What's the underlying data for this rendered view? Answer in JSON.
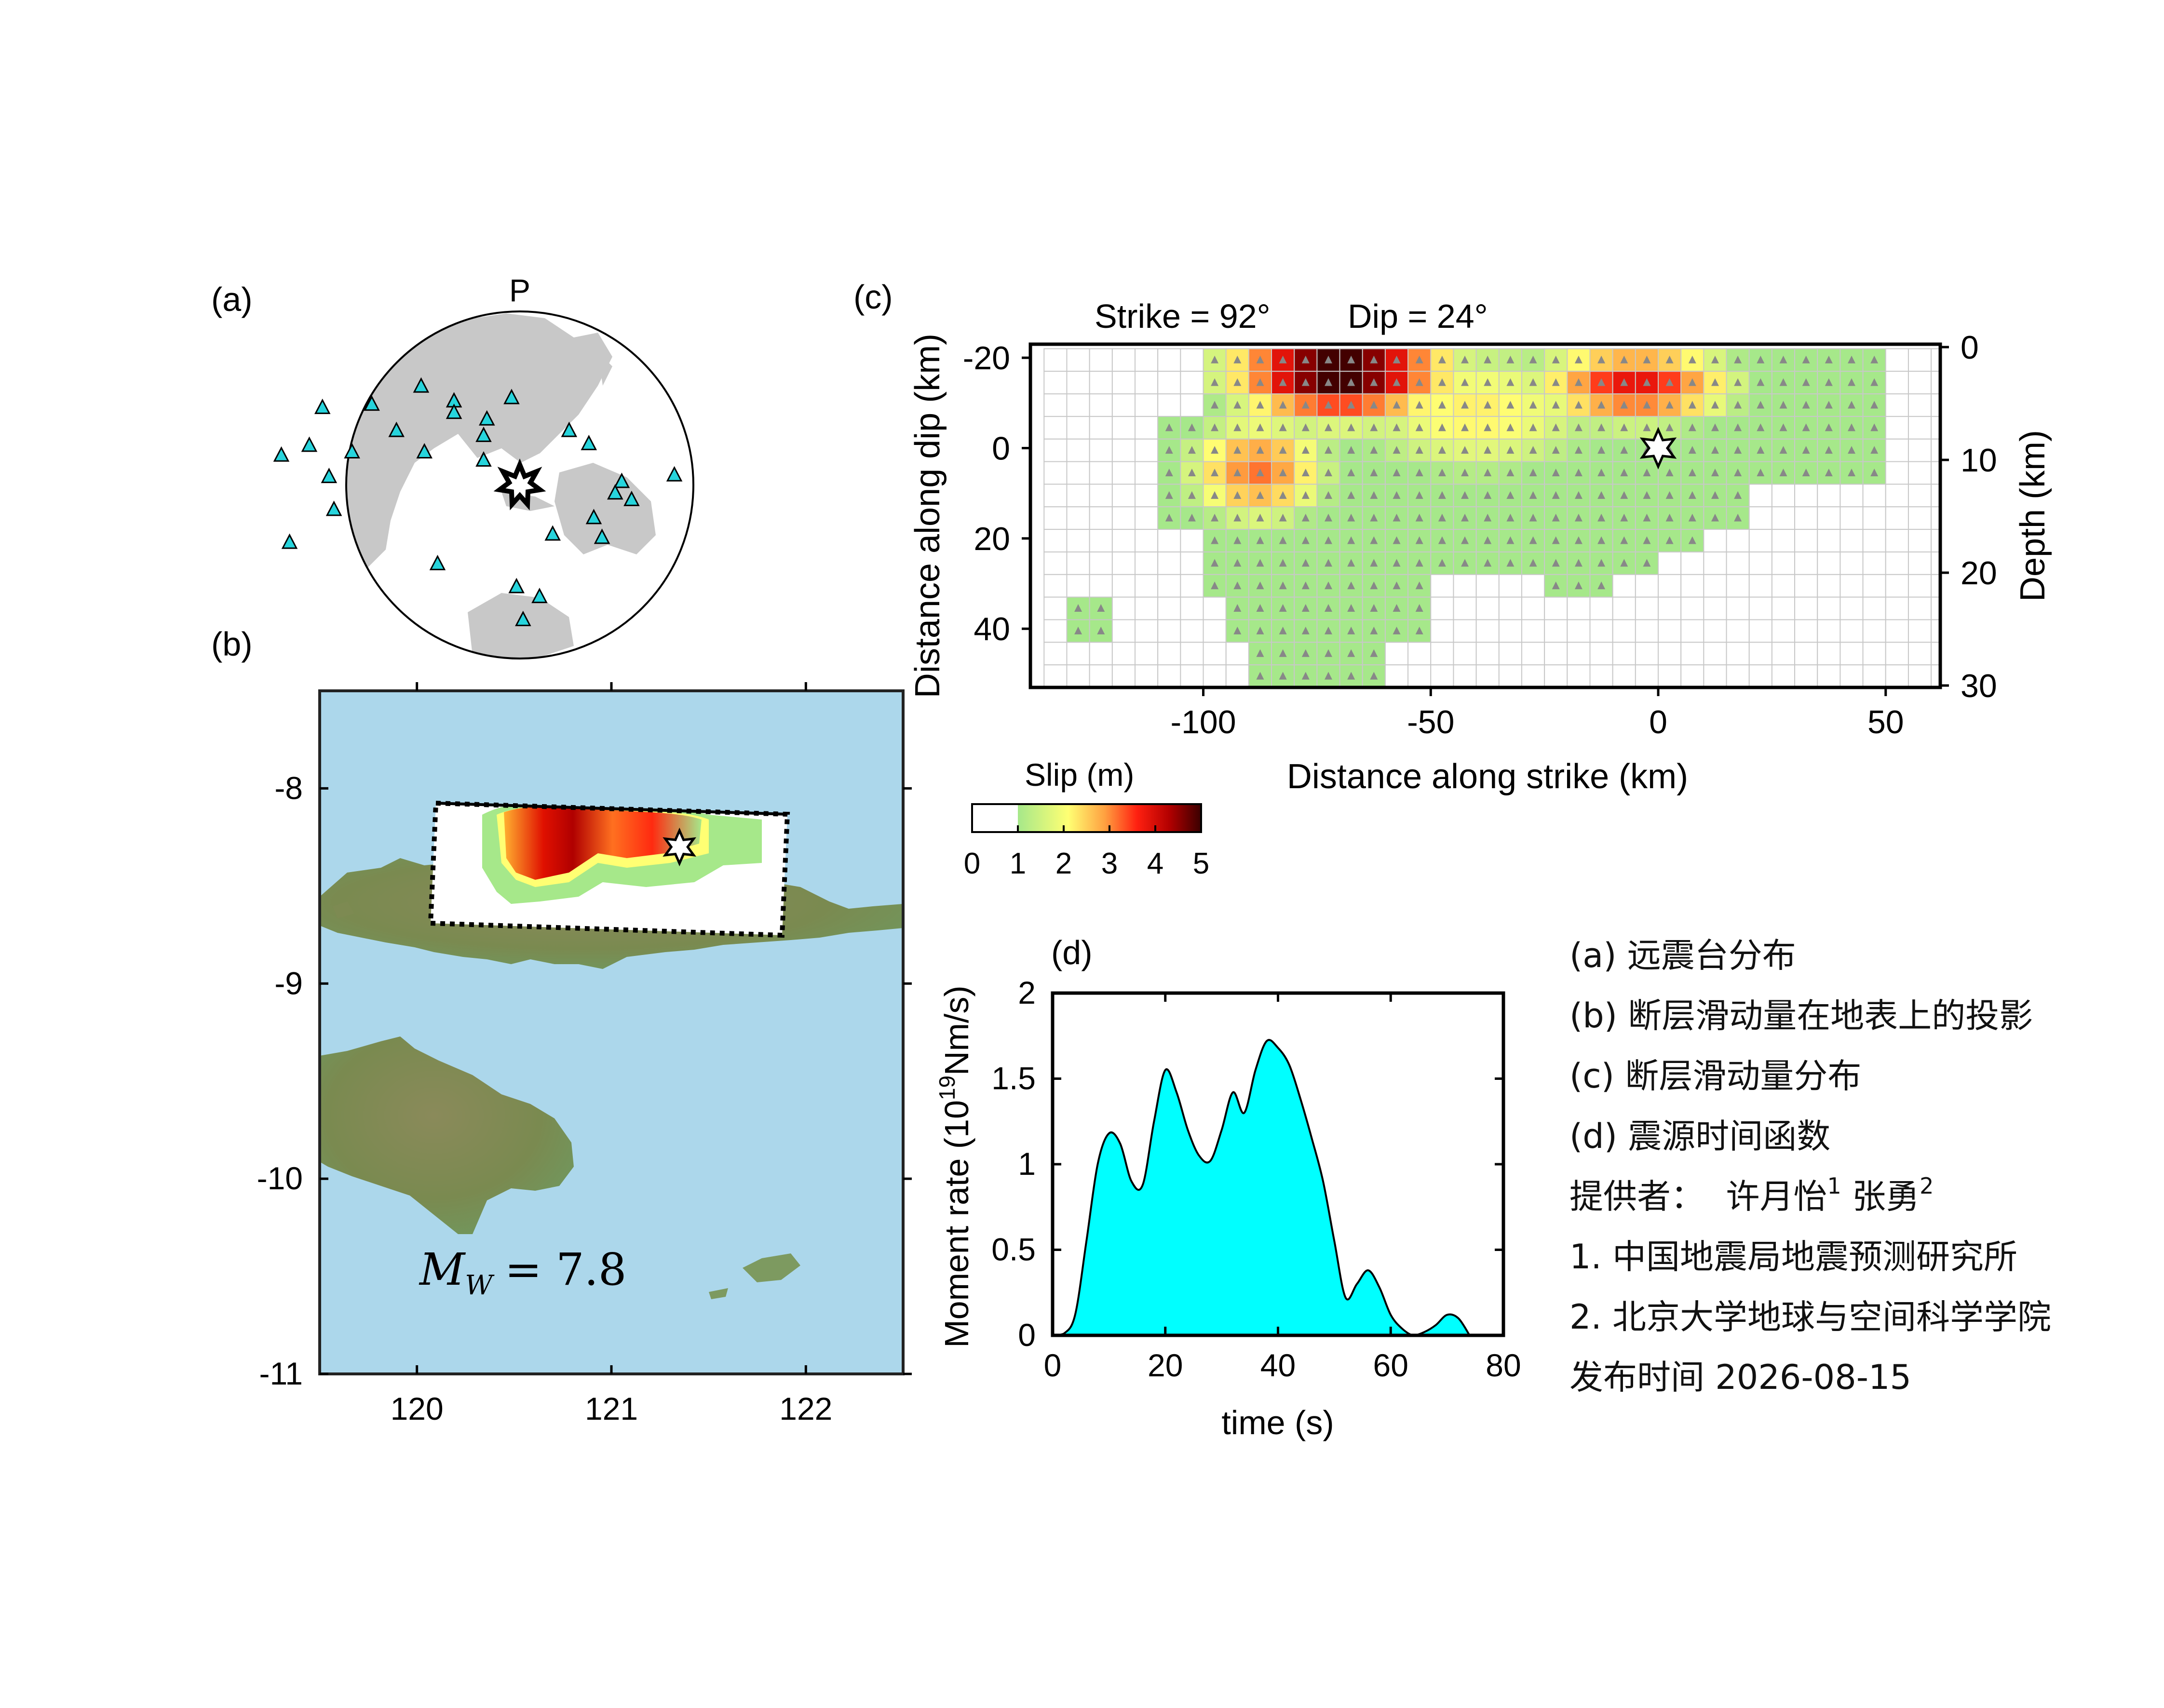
{
  "panels": {
    "a": {
      "label": "(a)",
      "phase": "P"
    },
    "b": {
      "label": "(b)",
      "magnitude_text": "M_W = 7.8",
      "magnitude_symbol": "M",
      "magnitude_sub": "W",
      "magnitude_value": "= 7.8"
    },
    "c": {
      "label": "(c)",
      "strike_text": "Strike = 92°",
      "dip_text": "Dip = 24°"
    },
    "d": {
      "label": "(d)"
    }
  },
  "colorbar": {
    "title": "Slip (m)",
    "ticks": [
      "0",
      "1",
      "2",
      "3",
      "4",
      "5"
    ],
    "colors": [
      "#ffffff",
      "#a6e88a",
      "#ffff73",
      "#ffa040",
      "#ff2010",
      "#cc0000",
      "#4a0000"
    ]
  },
  "legend": {
    "items": [
      "(a) 远震台分布",
      "(b) 断层滑动量在地表上的投影",
      "(c) 断层滑动量分布",
      "(d) 震源时间函数"
    ],
    "provider_label": "提供者：",
    "provider1": "许月怡",
    "provider1_sup": "1",
    "provider2": "张勇",
    "provider2_sup": "2",
    "affil1": "1. 中国地震局地震预测研究所",
    "affil2": "2. 北京大学地球与空间科学学院",
    "release": "发布时间 2026-08-15"
  },
  "chart_data": [
    {
      "panel": "b",
      "type": "map",
      "xticks": [
        "120",
        "121",
        "122"
      ],
      "yticks": [
        "-8",
        "-9",
        "-10",
        "-11"
      ],
      "xlim": [
        119.5,
        122.5
      ],
      "ylim": [
        -11,
        -7.5
      ],
      "epicenter": {
        "lon": 121.35,
        "lat": -8.3
      }
    },
    {
      "panel": "c",
      "type": "heatmap",
      "xlabel": "Distance along strike (km)",
      "ylabel": "Distance along dip (km)",
      "y2label": "Depth (km)",
      "xticks": [
        "-100",
        "-50",
        "0",
        "50"
      ],
      "yticks": [
        "-20",
        "0",
        "20",
        "40"
      ],
      "y2ticks": [
        "0",
        "10",
        "20",
        "30"
      ],
      "xlim": [
        -138,
        62
      ],
      "ylim": [
        -23,
        53
      ],
      "hypocenter": {
        "x": 0,
        "y": 0
      },
      "cell_size_km": 5,
      "max_slip_m": 4.9
    },
    {
      "panel": "d",
      "type": "area",
      "xlabel": "time (s)",
      "ylabel": "Moment rate (10^19Nm/s)",
      "ylabel_main": "Moment rate (10",
      "ylabel_sup": "19",
      "ylabel_tail": "Nm/s)",
      "xticks": [
        "0",
        "20",
        "40",
        "60",
        "80"
      ],
      "yticks": [
        "0",
        "0.5",
        "1",
        "1.5",
        "2"
      ],
      "xlim": [
        0,
        80
      ],
      "ylim": [
        0,
        2
      ],
      "x": [
        0,
        2,
        4,
        6,
        8,
        10,
        12,
        14,
        16,
        18,
        20,
        22,
        24,
        26,
        28,
        30,
        32,
        34,
        36,
        38,
        40,
        42,
        44,
        46,
        48,
        50,
        52,
        54,
        56,
        58,
        60,
        62,
        64,
        66,
        68,
        70,
        72,
        74
      ],
      "y": [
        0,
        0.01,
        0.12,
        0.55,
        1.0,
        1.18,
        1.12,
        0.9,
        0.88,
        1.25,
        1.55,
        1.42,
        1.2,
        1.05,
        1.02,
        1.2,
        1.42,
        1.3,
        1.55,
        1.72,
        1.68,
        1.58,
        1.38,
        1.15,
        0.9,
        0.55,
        0.22,
        0.3,
        0.38,
        0.28,
        0.12,
        0.04,
        0.0,
        0.02,
        0.06,
        0.12,
        0.1,
        0.0
      ]
    }
  ],
  "stations": [
    {
      "lon": -120,
      "lat": 47
    },
    {
      "lon": -90,
      "lat": 49
    },
    {
      "lon": -60,
      "lat": 60
    },
    {
      "lon": -40,
      "lat": 51
    },
    {
      "lon": -40,
      "lat": 44
    },
    {
      "lon": -5,
      "lat": 53
    },
    {
      "lon": -20,
      "lat": 40
    },
    {
      "lon": -22,
      "lat": 30
    },
    {
      "lon": 30,
      "lat": 33
    },
    {
      "lon": -75,
      "lat": 33
    },
    {
      "lon": -58,
      "lat": 20
    },
    {
      "lon": -22,
      "lat": 15
    },
    {
      "lon": 42,
      "lat": 25
    },
    {
      "lon": -128,
      "lat": 24
    },
    {
      "lon": -102,
      "lat": 20
    },
    {
      "lon": -145,
      "lat": 18
    },
    {
      "lon": -116,
      "lat": 5
    },
    {
      "lon": -113,
      "lat": -15
    },
    {
      "lon": -140,
      "lat": -35
    },
    {
      "lon": 62,
      "lat": 2
    },
    {
      "lon": 58,
      "lat": -5
    },
    {
      "lon": 68,
      "lat": -9
    },
    {
      "lon": 94,
      "lat": 6
    },
    {
      "lon": 45,
      "lat": -20
    },
    {
      "lon": 20,
      "lat": -30
    },
    {
      "lon": 50,
      "lat": -32
    },
    {
      "lon": -50,
      "lat": -48
    },
    {
      "lon": -2,
      "lat": -62
    },
    {
      "lon": 12,
      "lat": -68
    },
    {
      "lon": 2,
      "lat": -82
    }
  ]
}
